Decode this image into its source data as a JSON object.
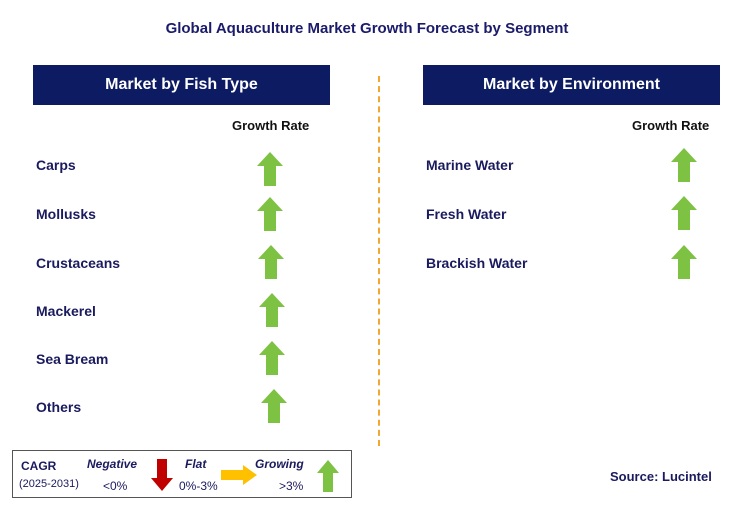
{
  "title": "Global Aquaculture Market Growth Forecast by Segment",
  "left_panel": {
    "header": "Market by Fish Type",
    "growth_header": "Growth Rate",
    "rows": [
      {
        "label": "Carps",
        "trend": "growing"
      },
      {
        "label": "Mollusks",
        "trend": "growing"
      },
      {
        "label": "Crustaceans",
        "trend": "growing"
      },
      {
        "label": "Mackerel",
        "trend": "growing"
      },
      {
        "label": "Sea Bream",
        "trend": "growing"
      },
      {
        "label": "Others",
        "trend": "growing"
      }
    ]
  },
  "right_panel": {
    "header": "Market by Environment",
    "growth_header": "Growth Rate",
    "rows": [
      {
        "label": "Marine Water",
        "trend": "growing"
      },
      {
        "label": "Fresh Water",
        "trend": "growing"
      },
      {
        "label": "Brackish Water",
        "trend": "growing"
      }
    ]
  },
  "legend": {
    "cagr": "CAGR",
    "years": "(2025-2031)",
    "negative_label": "Negative",
    "negative_value": "<0%",
    "flat_label": "Flat",
    "flat_value": "0%-3%",
    "growing_label": "Growing",
    "growing_value": ">3%"
  },
  "source": "Source: Lucintel",
  "colors": {
    "header_bg": "#0d1b63",
    "growing": "#7dc242",
    "negative": "#c00000",
    "flat": "#ffc000",
    "divider": "#f0a830"
  },
  "icons": {
    "growing": "up-arrow-icon",
    "negative": "down-arrow-icon",
    "flat": "right-arrow-icon"
  }
}
